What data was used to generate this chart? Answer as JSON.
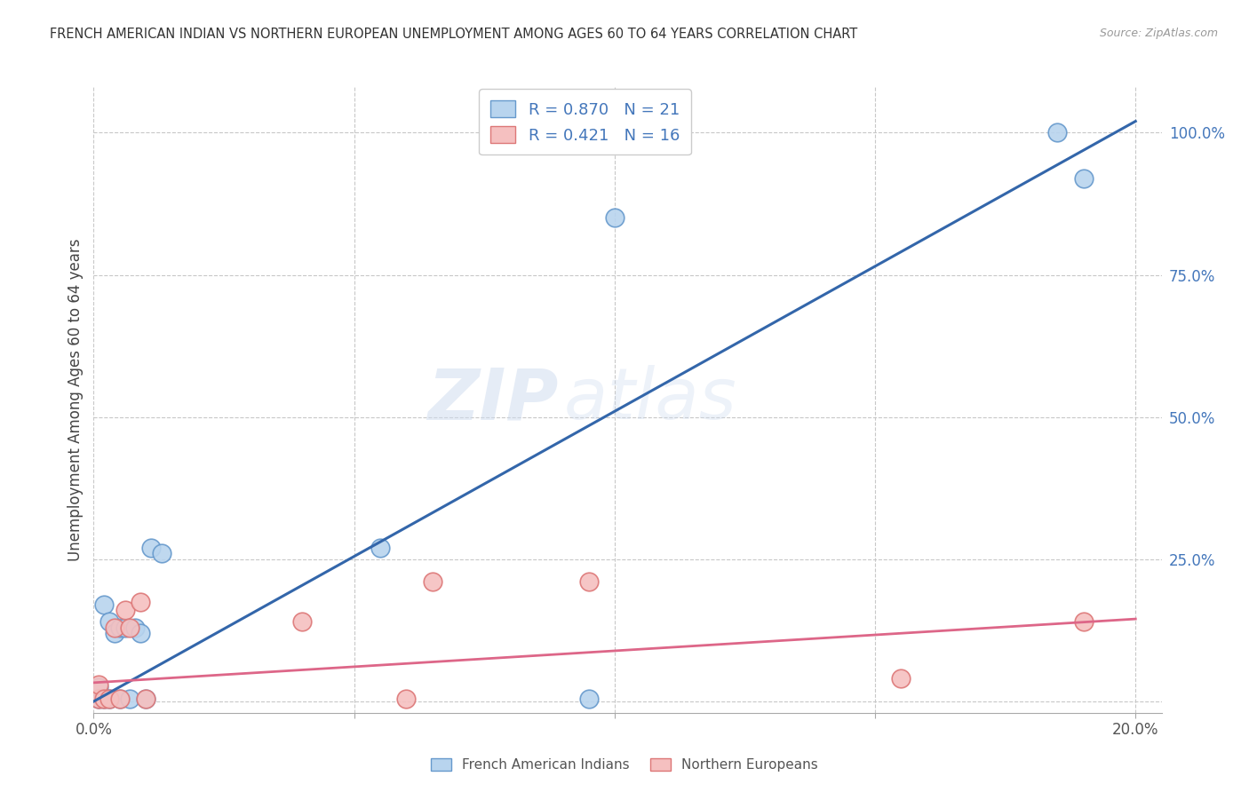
{
  "title": "FRENCH AMERICAN INDIAN VS NORTHERN EUROPEAN UNEMPLOYMENT AMONG AGES 60 TO 64 YEARS CORRELATION CHART",
  "source": "Source: ZipAtlas.com",
  "ylabel": "Unemployment Among Ages 60 to 64 years",
  "legend_labels": [
    "French American Indians",
    "Northern Europeans"
  ],
  "R_blue": 0.87,
  "N_blue": 21,
  "R_pink": 0.421,
  "N_pink": 16,
  "watermark_zip": "ZIP",
  "watermark_atlas": "atlas",
  "blue_points_x": [
    0.001,
    0.001,
    0.002,
    0.002,
    0.003,
    0.003,
    0.004,
    0.005,
    0.005,
    0.006,
    0.007,
    0.008,
    0.009,
    0.01,
    0.011,
    0.013,
    0.055,
    0.095,
    0.1,
    0.185,
    0.19
  ],
  "blue_points_y": [
    0.005,
    0.025,
    0.005,
    0.17,
    0.005,
    0.14,
    0.12,
    0.005,
    0.13,
    0.13,
    0.005,
    0.13,
    0.12,
    0.005,
    0.27,
    0.26,
    0.27,
    0.005,
    0.85,
    1.0,
    0.92
  ],
  "pink_points_x": [
    0.001,
    0.001,
    0.002,
    0.003,
    0.004,
    0.005,
    0.006,
    0.007,
    0.009,
    0.01,
    0.04,
    0.06,
    0.065,
    0.095,
    0.155,
    0.19
  ],
  "pink_points_y": [
    0.005,
    0.03,
    0.005,
    0.005,
    0.13,
    0.005,
    0.16,
    0.13,
    0.175,
    0.005,
    0.14,
    0.005,
    0.21,
    0.21,
    0.04,
    0.14
  ],
  "blue_line_x0": 0.0,
  "blue_line_y0": 0.0,
  "blue_line_x1": 0.2,
  "blue_line_y1": 1.02,
  "pink_line_x0": 0.0,
  "pink_line_y0": 0.033,
  "pink_line_x1": 0.2,
  "pink_line_y1": 0.145,
  "xlim": [
    0.0,
    0.205
  ],
  "ylim": [
    -0.02,
    1.08
  ],
  "x_ticks": [
    0.0,
    0.05,
    0.1,
    0.15,
    0.2
  ],
  "x_tick_labels": [
    "0.0%",
    "",
    "",
    "",
    "20.0%"
  ],
  "y_ticks_right": [
    0.0,
    0.25,
    0.5,
    0.75,
    1.0
  ],
  "y_tick_labels_right": [
    "",
    "25.0%",
    "50.0%",
    "75.0%",
    "100.0%"
  ],
  "grid_color": "#c8c8c8",
  "bg_color": "#ffffff",
  "blue_face": "#b8d4ee",
  "blue_edge": "#6699cc",
  "pink_face": "#f5c0c0",
  "pink_edge": "#dd7777",
  "blue_line_color": "#3366aa",
  "pink_line_color": "#dd6688",
  "right_axis_color": "#4477bb",
  "title_color": "#333333",
  "source_color": "#999999"
}
